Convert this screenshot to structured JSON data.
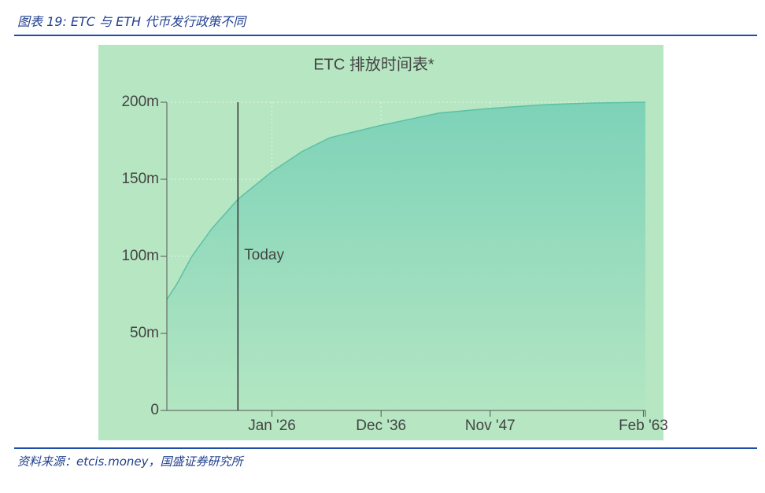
{
  "header": {
    "title": "图表 19:  ETC 与 ETH 代币发行政策不同"
  },
  "chart_data": {
    "type": "area",
    "title": "ETC 排放时间表*",
    "x": [
      2015.5,
      2016.5,
      2018,
      2020,
      2022.6,
      2026,
      2029,
      2031.8,
      2036.9,
      2042.7,
      2047.8,
      2053.5,
      2058,
      2063.3
    ],
    "values": [
      72,
      82,
      100,
      118,
      137,
      155,
      168,
      177,
      185,
      193,
      196,
      198.5,
      199.5,
      200
    ],
    "color": "#5cc0a6",
    "xlim": [
      2015.5,
      2063.3
    ],
    "xticks": [
      {
        "value": 2026.0,
        "label": "Jan '26"
      },
      {
        "value": 2036.9,
        "label": "Dec '36"
      },
      {
        "value": 2047.8,
        "label": "Nov '47"
      },
      {
        "value": 2063.1,
        "label": "Feb '63"
      }
    ],
    "ylim": [
      0,
      200
    ],
    "yticks": [
      0,
      {
        "value": 50,
        "label": "50m"
      },
      {
        "value": 100,
        "label": "100m"
      },
      {
        "value": 150,
        "label": "150m"
      },
      {
        "value": 200,
        "label": "200m"
      }
    ],
    "grid": true,
    "annotations": [
      {
        "text": "Today",
        "x": 2022.6
      }
    ]
  },
  "footer": {
    "source": "资料来源：etcis.money，国盛证券研究所"
  }
}
